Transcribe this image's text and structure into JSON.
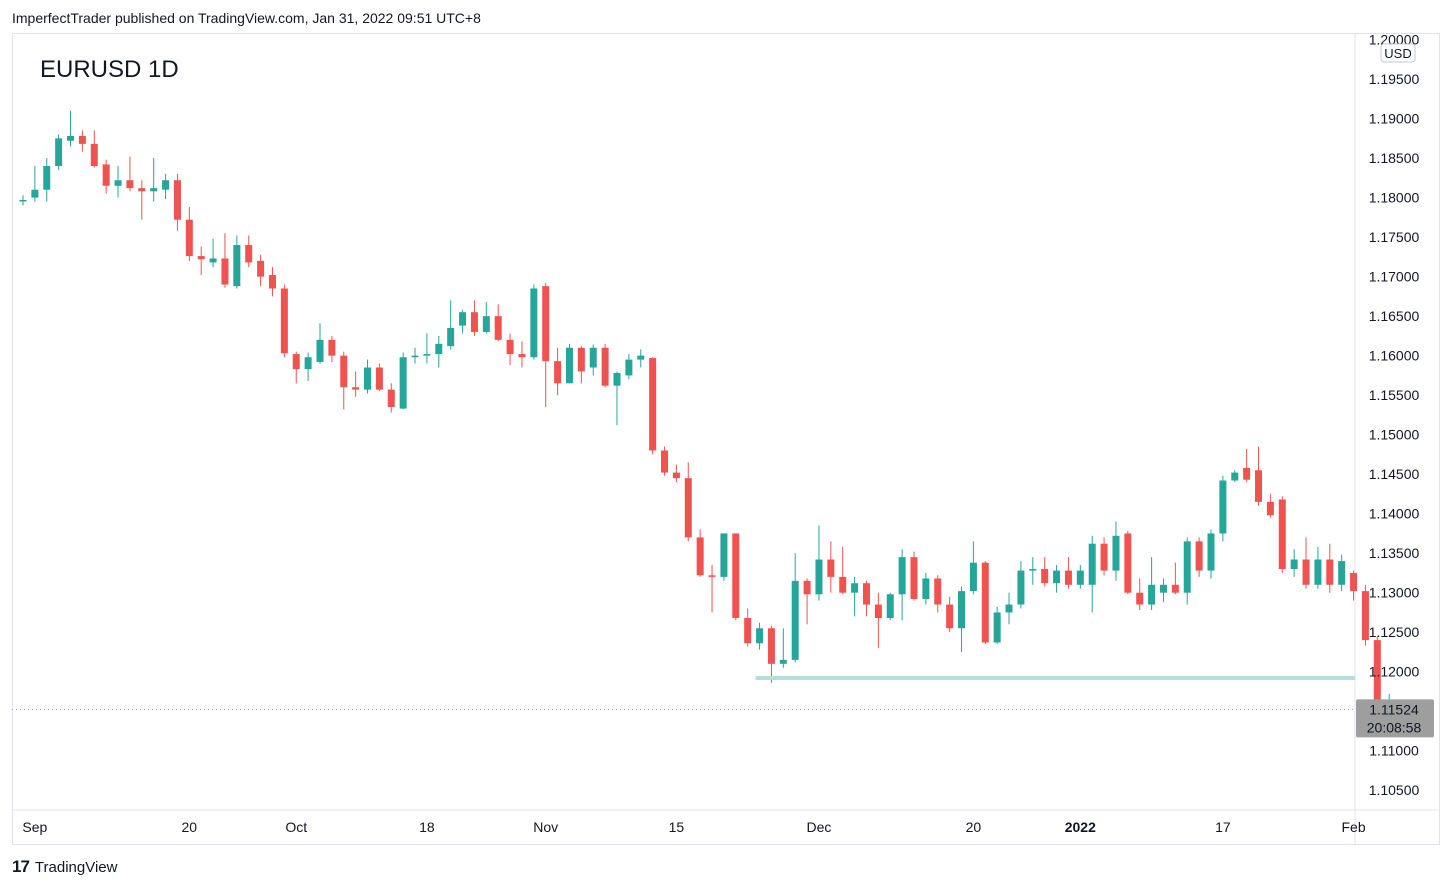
{
  "header": {
    "published": "ImperfectTrader published on TradingView.com, Jan 31, 2022 09:51 UTC+8"
  },
  "footer": {
    "logo": "17",
    "brand": "TradingView"
  },
  "colors": {
    "up": "#26a69a",
    "down": "#ef5350",
    "support": "#b2dfdb",
    "grid": "#e0e3eb",
    "price_label_bg": "#9e9e9e"
  },
  "chart_data": {
    "type": "candlestick",
    "title": "EURUSD 1D",
    "currency": "USD",
    "ylim": [
      1.1025,
      1.2002
    ],
    "y_ticks": [
      "1.20000",
      "1.19500",
      "1.19000",
      "1.18500",
      "1.18000",
      "1.17500",
      "1.17000",
      "1.16500",
      "1.16000",
      "1.15500",
      "1.15000",
      "1.14500",
      "1.14000",
      "1.13500",
      "1.13000",
      "1.12500",
      "1.12000",
      "1.11500",
      "1.11000",
      "1.10500"
    ],
    "x_ticks": [
      {
        "label": "Sep",
        "index": 1
      },
      {
        "label": "20",
        "index": 14
      },
      {
        "label": "Oct",
        "index": 23
      },
      {
        "label": "18",
        "index": 34
      },
      {
        "label": "Nov",
        "index": 44
      },
      {
        "label": "15",
        "index": 55
      },
      {
        "label": "Dec",
        "index": 67
      },
      {
        "label": "20",
        "index": 80
      },
      {
        "label": "2022",
        "index": 89
      },
      {
        "label": "17",
        "index": 101
      },
      {
        "label": "Feb",
        "index": 112
      }
    ],
    "last_price": "1.11524",
    "countdown": "20:08:58",
    "last_price_value": 1.11524,
    "support_line": {
      "value": 1.1192,
      "from_index": 62,
      "to_index": 118
    },
    "candles": [
      {
        "o": 1.1797,
        "h": 1.1803,
        "l": 1.179,
        "c": 1.1797
      },
      {
        "o": 1.18,
        "h": 1.184,
        "l": 1.1795,
        "c": 1.181
      },
      {
        "o": 1.181,
        "h": 1.185,
        "l": 1.1795,
        "c": 1.184
      },
      {
        "o": 1.184,
        "h": 1.188,
        "l": 1.1835,
        "c": 1.1875
      },
      {
        "o": 1.1872,
        "h": 1.191,
        "l": 1.1865,
        "c": 1.1878
      },
      {
        "o": 1.1878,
        "h": 1.1885,
        "l": 1.1858,
        "c": 1.1868
      },
      {
        "o": 1.1868,
        "h": 1.1885,
        "l": 1.1838,
        "c": 1.184
      },
      {
        "o": 1.1842,
        "h": 1.1848,
        "l": 1.1805,
        "c": 1.1815
      },
      {
        "o": 1.1815,
        "h": 1.184,
        "l": 1.18,
        "c": 1.1822
      },
      {
        "o": 1.1822,
        "h": 1.1852,
        "l": 1.1808,
        "c": 1.1812
      },
      {
        "o": 1.1812,
        "h": 1.1822,
        "l": 1.1772,
        "c": 1.1808
      },
      {
        "o": 1.1808,
        "h": 1.185,
        "l": 1.1795,
        "c": 1.1812
      },
      {
        "o": 1.181,
        "h": 1.183,
        "l": 1.1798,
        "c": 1.1822
      },
      {
        "o": 1.1822,
        "h": 1.183,
        "l": 1.1758,
        "c": 1.1772
      },
      {
        "o": 1.1772,
        "h": 1.1788,
        "l": 1.172,
        "c": 1.1726
      },
      {
        "o": 1.1726,
        "h": 1.1738,
        "l": 1.1702,
        "c": 1.1722
      },
      {
        "o": 1.1718,
        "h": 1.1748,
        "l": 1.1712,
        "c": 1.1723
      },
      {
        "o": 1.1723,
        "h": 1.1755,
        "l": 1.1686,
        "c": 1.169
      },
      {
        "o": 1.1688,
        "h": 1.1752,
        "l": 1.1685,
        "c": 1.174
      },
      {
        "o": 1.174,
        "h": 1.1752,
        "l": 1.1712,
        "c": 1.1718
      },
      {
        "o": 1.172,
        "h": 1.1728,
        "l": 1.1688,
        "c": 1.17
      },
      {
        "o": 1.1702,
        "h": 1.1712,
        "l": 1.1675,
        "c": 1.1685
      },
      {
        "o": 1.1685,
        "h": 1.169,
        "l": 1.1598,
        "c": 1.1603
      },
      {
        "o": 1.1602,
        "h": 1.1605,
        "l": 1.1565,
        "c": 1.1583
      },
      {
        "o": 1.1583,
        "h": 1.1604,
        "l": 1.1568,
        "c": 1.1598
      },
      {
        "o": 1.1592,
        "h": 1.1641,
        "l": 1.159,
        "c": 1.162
      },
      {
        "o": 1.162,
        "h": 1.1625,
        "l": 1.1592,
        "c": 1.16
      },
      {
        "o": 1.16,
        "h": 1.1605,
        "l": 1.1532,
        "c": 1.156
      },
      {
        "o": 1.156,
        "h": 1.158,
        "l": 1.1548,
        "c": 1.1557
      },
      {
        "o": 1.1557,
        "h": 1.1595,
        "l": 1.1552,
        "c": 1.1585
      },
      {
        "o": 1.1585,
        "h": 1.159,
        "l": 1.1555,
        "c": 1.1557
      },
      {
        "o": 1.1557,
        "h": 1.1565,
        "l": 1.1528,
        "c": 1.1535
      },
      {
        "o": 1.1533,
        "h": 1.1604,
        "l": 1.1532,
        "c": 1.1598
      },
      {
        "o": 1.1598,
        "h": 1.161,
        "l": 1.159,
        "c": 1.16
      },
      {
        "o": 1.16,
        "h": 1.1628,
        "l": 1.159,
        "c": 1.1602
      },
      {
        "o": 1.1602,
        "h": 1.1625,
        "l": 1.1585,
        "c": 1.1615
      },
      {
        "o": 1.1612,
        "h": 1.167,
        "l": 1.1608,
        "c": 1.1635
      },
      {
        "o": 1.1638,
        "h": 1.1658,
        "l": 1.1628,
        "c": 1.1655
      },
      {
        "o": 1.1655,
        "h": 1.167,
        "l": 1.1625,
        "c": 1.163
      },
      {
        "o": 1.163,
        "h": 1.1668,
        "l": 1.1628,
        "c": 1.165
      },
      {
        "o": 1.165,
        "h": 1.1665,
        "l": 1.1618,
        "c": 1.162
      },
      {
        "o": 1.162,
        "h": 1.1628,
        "l": 1.1588,
        "c": 1.1602
      },
      {
        "o": 1.1602,
        "h": 1.1618,
        "l": 1.1585,
        "c": 1.1598
      },
      {
        "o": 1.1598,
        "h": 1.169,
        "l": 1.1595,
        "c": 1.1685
      },
      {
        "o": 1.1688,
        "h": 1.1692,
        "l": 1.1535,
        "c": 1.1593
      },
      {
        "o": 1.1593,
        "h": 1.161,
        "l": 1.155,
        "c": 1.1565
      },
      {
        "o": 1.1565,
        "h": 1.1615,
        "l": 1.1565,
        "c": 1.161
      },
      {
        "o": 1.161,
        "h": 1.1612,
        "l": 1.1565,
        "c": 1.158
      },
      {
        "o": 1.1585,
        "h": 1.1614,
        "l": 1.1575,
        "c": 1.161
      },
      {
        "o": 1.161,
        "h": 1.1615,
        "l": 1.156,
        "c": 1.1562
      },
      {
        "o": 1.1562,
        "h": 1.158,
        "l": 1.1512,
        "c": 1.1578
      },
      {
        "o": 1.1575,
        "h": 1.1602,
        "l": 1.157,
        "c": 1.1595
      },
      {
        "o": 1.1595,
        "h": 1.1608,
        "l": 1.1585,
        "c": 1.16
      },
      {
        "o": 1.1597,
        "h": 1.1598,
        "l": 1.1475,
        "c": 1.148
      },
      {
        "o": 1.148,
        "h": 1.1485,
        "l": 1.1448,
        "c": 1.1452
      },
      {
        "o": 1.1452,
        "h": 1.1462,
        "l": 1.144,
        "c": 1.1445
      },
      {
        "o": 1.1445,
        "h": 1.1465,
        "l": 1.1365,
        "c": 1.137
      },
      {
        "o": 1.137,
        "h": 1.138,
        "l": 1.132,
        "c": 1.1322
      },
      {
        "o": 1.1322,
        "h": 1.1335,
        "l": 1.1275,
        "c": 1.132
      },
      {
        "o": 1.132,
        "h": 1.1375,
        "l": 1.1315,
        "c": 1.1375
      },
      {
        "o": 1.1375,
        "h": 1.1375,
        "l": 1.1265,
        "c": 1.1268
      },
      {
        "o": 1.1268,
        "h": 1.128,
        "l": 1.1232,
        "c": 1.1236
      },
      {
        "o": 1.1236,
        "h": 1.1262,
        "l": 1.1228,
        "c": 1.1255
      },
      {
        "o": 1.1255,
        "h": 1.1258,
        "l": 1.1186,
        "c": 1.121
      },
      {
        "o": 1.121,
        "h": 1.1255,
        "l": 1.1205,
        "c": 1.1215
      },
      {
        "o": 1.1215,
        "h": 1.135,
        "l": 1.1212,
        "c": 1.1315
      },
      {
        "o": 1.1315,
        "h": 1.1318,
        "l": 1.126,
        "c": 1.1298
      },
      {
        "o": 1.1298,
        "h": 1.1385,
        "l": 1.129,
        "c": 1.1342
      },
      {
        "o": 1.1342,
        "h": 1.1365,
        "l": 1.13,
        "c": 1.132
      },
      {
        "o": 1.132,
        "h": 1.1358,
        "l": 1.1298,
        "c": 1.13
      },
      {
        "o": 1.13,
        "h": 1.132,
        "l": 1.127,
        "c": 1.1312
      },
      {
        "o": 1.1312,
        "h": 1.1315,
        "l": 1.127,
        "c": 1.1285
      },
      {
        "o": 1.1285,
        "h": 1.13,
        "l": 1.123,
        "c": 1.1268
      },
      {
        "o": 1.1268,
        "h": 1.13,
        "l": 1.1265,
        "c": 1.1298
      },
      {
        "o": 1.1298,
        "h": 1.1355,
        "l": 1.1265,
        "c": 1.1345
      },
      {
        "o": 1.1345,
        "h": 1.1352,
        "l": 1.129,
        "c": 1.1292
      },
      {
        "o": 1.1292,
        "h": 1.1325,
        "l": 1.1285,
        "c": 1.1318
      },
      {
        "o": 1.1318,
        "h": 1.1322,
        "l": 1.1275,
        "c": 1.1285
      },
      {
        "o": 1.1285,
        "h": 1.1295,
        "l": 1.125,
        "c": 1.1255
      },
      {
        "o": 1.1255,
        "h": 1.1308,
        "l": 1.1225,
        "c": 1.1302
      },
      {
        "o": 1.1302,
        "h": 1.1365,
        "l": 1.1298,
        "c": 1.1338
      },
      {
        "o": 1.1338,
        "h": 1.134,
        "l": 1.1235,
        "c": 1.1237
      },
      {
        "o": 1.1237,
        "h": 1.1282,
        "l": 1.1235,
        "c": 1.1275
      },
      {
        "o": 1.1275,
        "h": 1.13,
        "l": 1.126,
        "c": 1.1285
      },
      {
        "o": 1.1285,
        "h": 1.134,
        "l": 1.128,
        "c": 1.1328
      },
      {
        "o": 1.1328,
        "h": 1.1345,
        "l": 1.131,
        "c": 1.133
      },
      {
        "o": 1.133,
        "h": 1.1345,
        "l": 1.1308,
        "c": 1.1312
      },
      {
        "o": 1.1312,
        "h": 1.1335,
        "l": 1.13,
        "c": 1.1328
      },
      {
        "o": 1.1328,
        "h": 1.1345,
        "l": 1.1305,
        "c": 1.131
      },
      {
        "o": 1.131,
        "h": 1.1335,
        "l": 1.1305,
        "c": 1.1328
      },
      {
        "o": 1.131,
        "h": 1.1372,
        "l": 1.1275,
        "c": 1.1362
      },
      {
        "o": 1.1362,
        "h": 1.137,
        "l": 1.1322,
        "c": 1.1328
      },
      {
        "o": 1.1328,
        "h": 1.139,
        "l": 1.1315,
        "c": 1.1372
      },
      {
        "o": 1.1375,
        "h": 1.1378,
        "l": 1.1298,
        "c": 1.13
      },
      {
        "o": 1.13,
        "h": 1.1318,
        "l": 1.1278,
        "c": 1.1285
      },
      {
        "o": 1.1285,
        "h": 1.1345,
        "l": 1.1278,
        "c": 1.131
      },
      {
        "o": 1.13,
        "h": 1.1318,
        "l": 1.1288,
        "c": 1.131
      },
      {
        "o": 1.131,
        "h": 1.1338,
        "l": 1.1298,
        "c": 1.13
      },
      {
        "o": 1.13,
        "h": 1.137,
        "l": 1.1285,
        "c": 1.1365
      },
      {
        "o": 1.1365,
        "h": 1.137,
        "l": 1.132,
        "c": 1.1328
      },
      {
        "o": 1.1328,
        "h": 1.138,
        "l": 1.1318,
        "c": 1.1375
      },
      {
        "o": 1.1375,
        "h": 1.1448,
        "l": 1.1365,
        "c": 1.1442
      },
      {
        "o": 1.1442,
        "h": 1.1455,
        "l": 1.144,
        "c": 1.1452
      },
      {
        "o": 1.1458,
        "h": 1.1482,
        "l": 1.144,
        "c": 1.1443
      },
      {
        "o": 1.1455,
        "h": 1.1485,
        "l": 1.141,
        "c": 1.1415
      },
      {
        "o": 1.1415,
        "h": 1.1425,
        "l": 1.1395,
        "c": 1.1398
      },
      {
        "o": 1.1418,
        "h": 1.1422,
        "l": 1.1325,
        "c": 1.133
      },
      {
        "o": 1.133,
        "h": 1.1355,
        "l": 1.132,
        "c": 1.1342
      },
      {
        "o": 1.1342,
        "h": 1.137,
        "l": 1.1305,
        "c": 1.131
      },
      {
        "o": 1.131,
        "h": 1.1358,
        "l": 1.1305,
        "c": 1.1342
      },
      {
        "o": 1.1342,
        "h": 1.1362,
        "l": 1.13,
        "c": 1.131
      },
      {
        "o": 1.131,
        "h": 1.1348,
        "l": 1.1302,
        "c": 1.134
      },
      {
        "o": 1.1325,
        "h": 1.1328,
        "l": 1.129,
        "c": 1.1302
      },
      {
        "o": 1.1302,
        "h": 1.131,
        "l": 1.1233,
        "c": 1.124
      },
      {
        "o": 1.124,
        "h": 1.1245,
        "l": 1.1138,
        "c": 1.1148
      },
      {
        "o": 1.1148,
        "h": 1.1172,
        "l": 1.112,
        "c": 1.1155
      },
      {
        "o": 1.115,
        "h": 1.1158,
        "l": 1.1138,
        "c": 1.1152
      }
    ]
  }
}
